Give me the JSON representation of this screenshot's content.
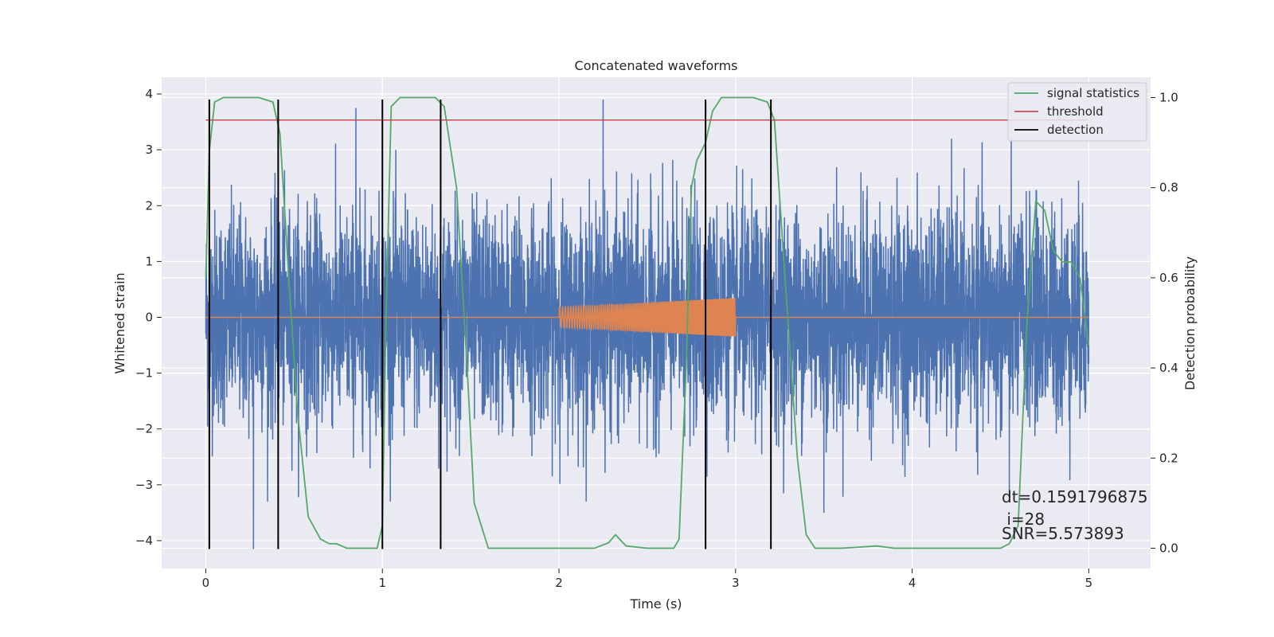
{
  "chart_data": {
    "type": "line",
    "title": "Concatenated waveforms",
    "xlabel": "Time (s)",
    "ylabel": "Whitened strain",
    "y2label": "Detection probability",
    "xlim": [
      -0.25,
      5.35
    ],
    "ylim": [
      -4.5,
      4.3
    ],
    "y2lim": [
      -0.045,
      1.045
    ],
    "xticks": [
      0,
      1,
      2,
      3,
      4,
      5
    ],
    "yticks": [
      -4,
      -3,
      -2,
      -1,
      0,
      1,
      2,
      3,
      4
    ],
    "y2ticks": [
      0.0,
      0.2,
      0.4,
      0.6,
      0.8,
      1.0
    ],
    "xtick_labels": [
      "0",
      "1",
      "2",
      "3",
      "4",
      "5"
    ],
    "ytick_labels": [
      "−4",
      "−3",
      "−2",
      "−1",
      "0",
      "1",
      "2",
      "3",
      "4"
    ],
    "y2tick_labels": [
      "0.0",
      "0.2",
      "0.4",
      "0.6",
      "0.8",
      "1.0"
    ],
    "grid": true,
    "legend_position": "top-right",
    "colors": {
      "strain": "#4c72b0",
      "waveform": "#dd8452",
      "statistics": "#55a868",
      "threshold": "#c44e52",
      "detection": "#000000",
      "background": "#eaeaf2",
      "grid": "#ffffff"
    },
    "series": [
      {
        "name": "Whitened strain",
        "axis": "left",
        "kind": "noise",
        "x_range": [
          0,
          5
        ],
        "approx_std": 0.95,
        "extremes": [
          {
            "x": 0.27,
            "y": -4.15
          },
          {
            "x": 0.85,
            "y": 3.75
          },
          {
            "x": 2.25,
            "y": 3.9
          },
          {
            "x": 3.5,
            "y": -3.5
          },
          {
            "x": 4.55,
            "y": -3.2
          }
        ]
      },
      {
        "name": "Injected waveform",
        "axis": "left",
        "kind": "chirp",
        "x_range": [
          2.0,
          3.0
        ],
        "amplitude_start": 0.18,
        "amplitude_end": 0.35
      },
      {
        "name": "signal statistics",
        "axis": "right",
        "x": [
          0.0,
          0.02,
          0.05,
          0.1,
          0.3,
          0.38,
          0.42,
          0.47,
          0.52,
          0.58,
          0.65,
          0.7,
          0.74,
          0.8,
          0.9,
          0.97,
          1.0,
          1.02,
          1.05,
          1.1,
          1.3,
          1.35,
          1.42,
          1.48,
          1.52,
          1.6,
          1.8,
          2.0,
          2.2,
          2.28,
          2.32,
          2.38,
          2.5,
          2.65,
          2.68,
          2.72,
          2.75,
          2.78,
          2.83,
          2.87,
          2.92,
          3.0,
          3.1,
          3.18,
          3.22,
          3.28,
          3.35,
          3.4,
          3.45,
          3.6,
          3.8,
          3.9,
          4.2,
          4.5,
          4.55,
          4.6,
          4.65,
          4.7,
          4.75,
          4.8,
          4.85,
          4.9,
          4.95,
          5.0
        ],
        "y": [
          0.6,
          0.88,
          0.99,
          1.0,
          1.0,
          0.99,
          0.92,
          0.6,
          0.3,
          0.07,
          0.02,
          0.01,
          0.01,
          0.0,
          0.0,
          0.0,
          0.05,
          0.5,
          0.98,
          1.0,
          1.0,
          0.98,
          0.8,
          0.4,
          0.1,
          0.0,
          0.0,
          0.0,
          0.0,
          0.012,
          0.03,
          0.005,
          0.0,
          0.0,
          0.02,
          0.4,
          0.8,
          0.86,
          0.9,
          0.97,
          1.0,
          1.0,
          1.0,
          0.99,
          0.95,
          0.6,
          0.2,
          0.03,
          0.0,
          0.0,
          0.005,
          0.0,
          0.0,
          0.0,
          0.01,
          0.05,
          0.5,
          0.77,
          0.75,
          0.66,
          0.635,
          0.635,
          0.6,
          0.45
        ]
      },
      {
        "name": "threshold",
        "axis": "right",
        "y": 0.95,
        "x_range": [
          0,
          5
        ]
      },
      {
        "name": "detection",
        "axis": "left",
        "x": [
          0.02,
          0.41,
          1.0,
          1.33,
          2.83,
          3.2
        ],
        "y_range": [
          -4.15,
          3.9
        ]
      }
    ],
    "legend": [
      "signal statistics",
      "threshold",
      "detection"
    ],
    "annotations": {
      "dt": "dt=0.1591796875",
      "i": " i=28",
      "snr": "SNR=5.573893"
    }
  }
}
